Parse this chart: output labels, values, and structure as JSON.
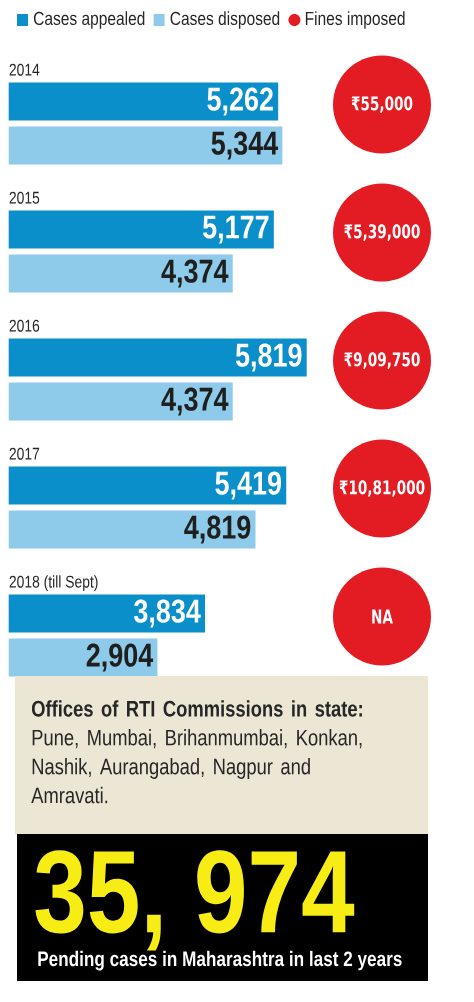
{
  "chart_data": [
    {
      "type": "bar",
      "orientation": "horizontal",
      "legend": "top",
      "categories": [
        "2014",
        "2015",
        "2016",
        "2017",
        "2018 (till Sept)"
      ],
      "series": [
        {
          "name": "Cases appealed",
          "color": "#0a8fca",
          "values": [
            5262,
            5177,
            5819,
            5419,
            3834
          ],
          "value_labels": [
            "5,262",
            "5,177",
            "5,819",
            "5,419",
            "3,834"
          ]
        },
        {
          "name": "Cases disposed",
          "color": "#8ecae9",
          "values": [
            5344,
            4374,
            4374,
            4819,
            2904
          ],
          "value_labels": [
            "5,344",
            "4,374",
            "4,374",
            "4,819",
            "2,904"
          ]
        }
      ],
      "annotations": [
        "**Offices of RTI Commissions in state:** Pune, Mumbai, Brihanmumbai, Konkan, Nashik, Aurangabad, Nagpur and Amravati.",
        "35, 974",
        "Pending cases in Maharashtra in last 2 years"
      ]
    },
    {
      "type": "other",
      "categories": [
        null,
        null,
        null,
        null,
        null
      ],
      "series": [
        {
          "name": "Fines imposed",
          "color": "#e31b23",
          "values": [
            55000,
            539000,
            909750,
            1081000,
            null
          ],
          "value_labels": [
            "₹55,000",
            "₹5,39,000",
            "₹9,09,750",
            "₹10,81,000",
            "NA"
          ]
        }
      ]
    }
  ]
}
